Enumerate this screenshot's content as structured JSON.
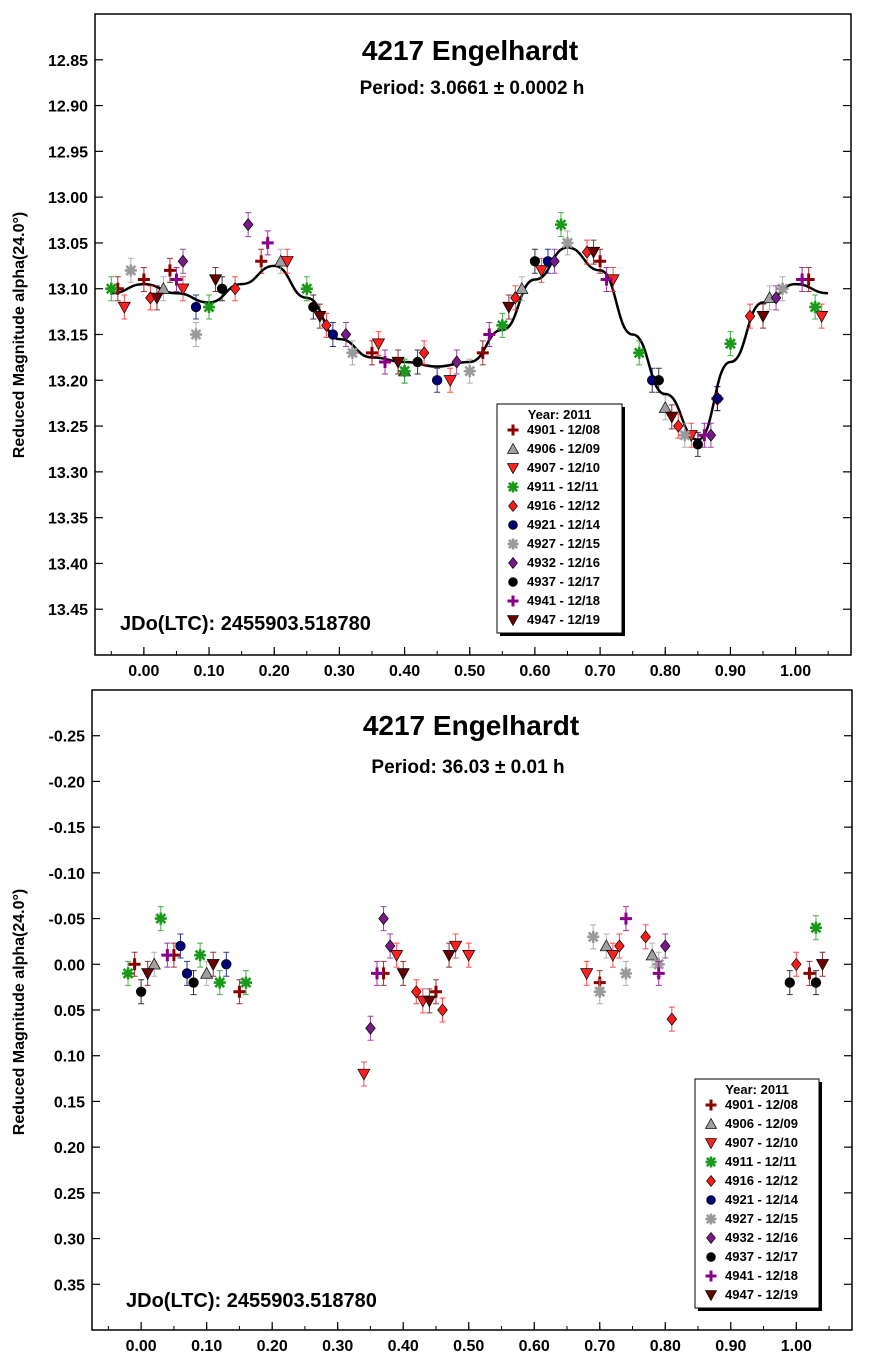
{
  "legend": {
    "title": "Year: 2011",
    "entries": [
      {
        "label": "4901 - 12/08",
        "color": "#8b0000",
        "marker": "plus"
      },
      {
        "label": "4906 - 12/09",
        "color": "#a0a0a0",
        "marker": "triangle-up"
      },
      {
        "label": "4907 - 12/10",
        "color": "#ff2020",
        "marker": "triangle-down"
      },
      {
        "label": "4911 - 12/11",
        "color": "#1a9a1a",
        "marker": "asterisk"
      },
      {
        "label": "4916 - 12/12",
        "color": "#ff1a1a",
        "marker": "diamond"
      },
      {
        "label": "4921 - 12/14",
        "color": "#00007a",
        "marker": "circle"
      },
      {
        "label": "4927 - 12/15",
        "color": "#9a9a9a",
        "marker": "asterisk"
      },
      {
        "label": "4932 - 12/16",
        "color": "#7a1a8a",
        "marker": "diamond"
      },
      {
        "label": "4937 - 12/17",
        "color": "#000000",
        "marker": "circle"
      },
      {
        "label": "4941 - 12/18",
        "color": "#8a008a",
        "marker": "plus"
      },
      {
        "label": "4947 - 12/19",
        "color": "#6a0000",
        "marker": "triangle-down"
      }
    ]
  },
  "chart_data": [
    {
      "type": "scatter",
      "title": "4217 Engelhardt",
      "subtitle": "Period: 3.0661 ± 0.0002 h",
      "ylabel": "Reduced Magnitude alpha(24.0°)",
      "annotation": "JDo(LTC): 2455903.518780",
      "x_ticks": [
        "0.00",
        "0.10",
        "0.20",
        "0.30",
        "0.40",
        "0.50",
        "0.60",
        "0.70",
        "0.80",
        "0.90",
        "1.00"
      ],
      "y_ticks": [
        "12.85",
        "12.90",
        "12.95",
        "13.00",
        "13.05",
        "13.10",
        "13.15",
        "13.20",
        "13.25",
        "13.30",
        "13.35",
        "13.40",
        "13.45"
      ],
      "xlim": [
        -0.075,
        1.085
      ],
      "ylim": [
        12.8,
        13.5
      ],
      "y_inverted": true,
      "legend_position": "bottom-right",
      "fit_curve": {
        "x": [
          -0.05,
          0.0,
          0.05,
          0.1,
          0.15,
          0.2,
          0.25,
          0.3,
          0.35,
          0.4,
          0.45,
          0.5,
          0.55,
          0.6,
          0.65,
          0.7,
          0.75,
          0.8,
          0.85,
          0.9,
          0.95,
          1.0,
          1.05
        ],
        "y": [
          13.105,
          13.095,
          13.105,
          13.115,
          13.095,
          13.075,
          13.11,
          13.155,
          13.175,
          13.18,
          13.185,
          13.18,
          13.145,
          13.09,
          13.055,
          13.08,
          13.15,
          13.215,
          13.265,
          13.18,
          13.115,
          13.095,
          13.105
        ]
      },
      "series": [
        {
          "name": "4901 - 12/08",
          "x": [
            -0.04,
            0.0,
            0.04,
            0.18,
            0.35,
            0.52,
            0.7,
            0.88,
            1.02
          ],
          "y": [
            13.1,
            13.09,
            13.08,
            13.07,
            13.17,
            13.17,
            13.07,
            13.22,
            13.09
          ]
        },
        {
          "name": "4906 - 12/09",
          "x": [
            0.03,
            0.21,
            0.4,
            0.58,
            0.8,
            0.96
          ],
          "y": [
            13.1,
            13.07,
            13.19,
            13.1,
            13.23,
            13.11
          ]
        },
        {
          "name": "4907 - 12/10",
          "x": [
            -0.03,
            0.06,
            0.22,
            0.36,
            0.47,
            0.61,
            0.72,
            0.84,
            1.04
          ],
          "y": [
            13.12,
            13.1,
            13.07,
            13.16,
            13.2,
            13.08,
            13.09,
            13.26,
            13.13
          ]
        },
        {
          "name": "4911 - 12/11",
          "x": [
            -0.05,
            0.1,
            0.25,
            0.4,
            0.55,
            0.64,
            0.76,
            0.9,
            1.03
          ],
          "y": [
            13.1,
            13.12,
            13.1,
            13.19,
            13.14,
            13.03,
            13.17,
            13.16,
            13.12
          ]
        },
        {
          "name": "4916 - 12/12",
          "x": [
            0.01,
            0.14,
            0.28,
            0.43,
            0.57,
            0.68,
            0.82,
            0.93
          ],
          "y": [
            13.11,
            13.1,
            13.14,
            13.17,
            13.11,
            13.06,
            13.25,
            13.13
          ]
        },
        {
          "name": "4921 - 12/14",
          "x": [
            0.08,
            0.29,
            0.45,
            0.62,
            0.78,
            0.88
          ],
          "y": [
            13.12,
            13.15,
            13.2,
            13.07,
            13.2,
            13.22
          ]
        },
        {
          "name": "4927 - 12/15",
          "x": [
            -0.02,
            0.08,
            0.32,
            0.5,
            0.65,
            0.83,
            0.98
          ],
          "y": [
            13.08,
            13.15,
            13.17,
            13.19,
            13.05,
            13.26,
            13.1
          ]
        },
        {
          "name": "4932 - 12/16",
          "x": [
            0.06,
            0.16,
            0.31,
            0.48,
            0.63,
            0.87,
            0.97
          ],
          "y": [
            13.07,
            13.03,
            13.15,
            13.18,
            13.07,
            13.26,
            13.11
          ]
        },
        {
          "name": "4937 - 12/17",
          "x": [
            0.12,
            0.26,
            0.42,
            0.6,
            0.79,
            0.85
          ],
          "y": [
            13.1,
            13.12,
            13.18,
            13.07,
            13.2,
            13.27
          ]
        },
        {
          "name": "4941 - 12/18",
          "x": [
            0.05,
            0.19,
            0.37,
            0.53,
            0.71,
            0.86,
            1.01
          ],
          "y": [
            13.09,
            13.05,
            13.18,
            13.15,
            13.09,
            13.26,
            13.09
          ]
        },
        {
          "name": "4947 - 12/19",
          "x": [
            0.02,
            0.11,
            0.27,
            0.39,
            0.56,
            0.69,
            0.81,
            0.95
          ],
          "y": [
            13.11,
            13.09,
            13.13,
            13.18,
            13.12,
            13.06,
            13.24,
            13.13
          ]
        }
      ]
    },
    {
      "type": "scatter",
      "title": "4217 Engelhardt",
      "subtitle": "Period: 36.03 ± 0.01 h",
      "ylabel": "Reduced Magnitude alpha(24.0°)",
      "annotation": "JDo(LTC): 2455903.518780",
      "x_ticks": [
        "0.00",
        "0.10",
        "0.20",
        "0.30",
        "0.40",
        "0.50",
        "0.60",
        "0.70",
        "0.80",
        "0.90",
        "1.00"
      ],
      "y_ticks": [
        "-0.25",
        "-0.20",
        "-0.15",
        "-0.10",
        "-0.05",
        "0.00",
        "0.05",
        "0.10",
        "0.15",
        "0.20",
        "0.25",
        "0.30",
        "0.35"
      ],
      "xlim": [
        -0.075,
        1.085
      ],
      "ylim": [
        -0.3,
        0.4
      ],
      "y_inverted": true,
      "legend_position": "bottom-right",
      "series": [
        {
          "name": "4901 - 12/08",
          "x": [
            -0.01,
            0.05,
            0.15,
            0.37,
            0.45,
            0.7,
            1.02
          ],
          "y": [
            0.0,
            -0.01,
            0.03,
            0.01,
            0.03,
            0.02,
            0.01
          ]
        },
        {
          "name": "4906 - 12/09",
          "x": [
            0.02,
            0.1,
            0.71,
            0.78
          ],
          "y": [
            0.0,
            0.01,
            -0.02,
            -0.01
          ]
        },
        {
          "name": "4907 - 12/10",
          "x": [
            0.34,
            0.39,
            0.43,
            0.48,
            0.5,
            0.68,
            0.72
          ],
          "y": [
            0.12,
            -0.01,
            0.04,
            -0.02,
            -0.01,
            0.01,
            -0.01
          ]
        },
        {
          "name": "4911 - 12/11",
          "x": [
            -0.02,
            0.03,
            0.09,
            0.12,
            0.16,
            1.03
          ],
          "y": [
            0.01,
            -0.05,
            -0.01,
            0.02,
            0.02,
            -0.04
          ]
        },
        {
          "name": "4916 - 12/12",
          "x": [
            0.42,
            0.46,
            0.73,
            0.77,
            0.81,
            1.0
          ],
          "y": [
            0.03,
            0.05,
            -0.02,
            -0.03,
            0.06,
            0.0
          ]
        },
        {
          "name": "4921 - 12/14",
          "x": [
            0.06,
            0.07,
            0.13
          ],
          "y": [
            -0.02,
            0.01,
            0.0
          ]
        },
        {
          "name": "4927 - 12/15",
          "x": [
            0.69,
            0.7,
            0.74,
            0.79
          ],
          "y": [
            -0.03,
            0.03,
            0.01,
            0.0
          ]
        },
        {
          "name": "4932 - 12/16",
          "x": [
            0.35,
            0.37,
            0.38,
            0.8
          ],
          "y": [
            0.07,
            -0.05,
            -0.02,
            -0.02
          ]
        },
        {
          "name": "4937 - 12/17",
          "x": [
            0.0,
            0.08,
            0.99,
            1.03
          ],
          "y": [
            0.03,
            0.02,
            0.02,
            0.02
          ]
        },
        {
          "name": "4941 - 12/18",
          "x": [
            0.04,
            0.36,
            0.74,
            0.79
          ],
          "y": [
            -0.01,
            0.01,
            -0.05,
            0.01
          ]
        },
        {
          "name": "4947 - 12/19",
          "x": [
            0.01,
            0.11,
            0.4,
            0.44,
            0.47,
            1.04
          ],
          "y": [
            0.01,
            0.0,
            0.01,
            0.04,
            -0.01,
            0.0
          ]
        }
      ]
    }
  ]
}
